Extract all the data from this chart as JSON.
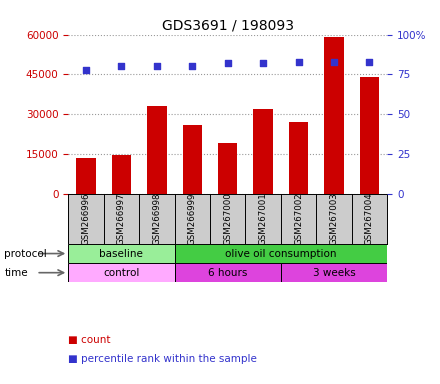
{
  "title": "GDS3691 / 198093",
  "samples": [
    "GSM266996",
    "GSM266997",
    "GSM266998",
    "GSM266999",
    "GSM267000",
    "GSM267001",
    "GSM267002",
    "GSM267003",
    "GSM267004"
  ],
  "counts": [
    13500,
    14500,
    33000,
    26000,
    19000,
    32000,
    27000,
    59000,
    44000
  ],
  "percentile_ranks": [
    78,
    80,
    80,
    80,
    82,
    82,
    83,
    83,
    83
  ],
  "ylim_left": [
    0,
    60000
  ],
  "yticks_left": [
    0,
    15000,
    30000,
    45000,
    60000
  ],
  "ylim_right": [
    0,
    100
  ],
  "yticks_right": [
    0,
    25,
    50,
    75,
    100
  ],
  "yticklabels_right": [
    "0",
    "25",
    "50",
    "75",
    "100%"
  ],
  "bar_color": "#cc0000",
  "scatter_color": "#3333cc",
  "grid_color": "#999999",
  "protocol_groups": [
    {
      "label": "baseline",
      "start": 0,
      "end": 3,
      "color": "#99ee99"
    },
    {
      "label": "olive oil consumption",
      "start": 3,
      "end": 9,
      "color": "#44cc44"
    }
  ],
  "time_groups": [
    {
      "label": "control",
      "start": 0,
      "end": 3,
      "color": "#ffaaff"
    },
    {
      "label": "6 hours",
      "start": 3,
      "end": 6,
      "color": "#dd44dd"
    },
    {
      "label": "3 weeks",
      "start": 6,
      "end": 9,
      "color": "#dd44dd"
    }
  ],
  "legend_count_color": "#cc0000",
  "legend_pct_color": "#3333cc",
  "background_color": "#ffffff",
  "tick_area_bg": "#cccccc"
}
